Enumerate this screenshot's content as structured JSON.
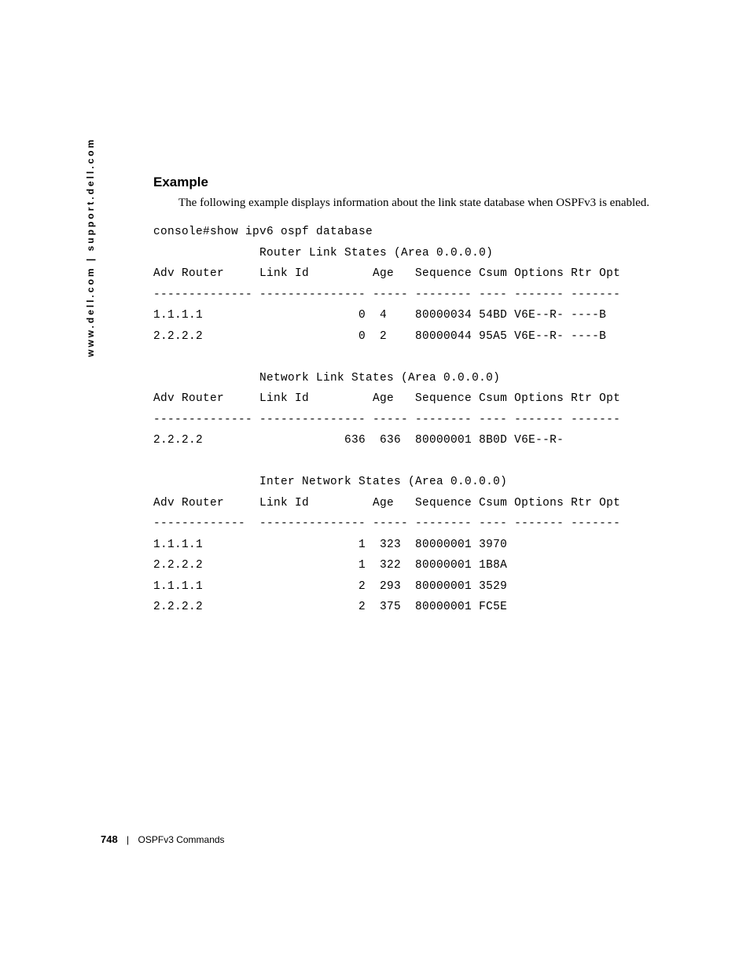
{
  "side_url": "www.dell.com | support.dell.com",
  "heading": "Example",
  "intro": "The following example displays information about the link state database when OSPFv3 is enabled.",
  "console": "console#show ipv6 ospf database\n               Router Link States (Area 0.0.0.0)\nAdv Router     Link Id         Age   Sequence Csum Options Rtr Opt\n-------------- --------------- ----- -------- ---- ------- -------\n1.1.1.1                      0  4    80000034 54BD V6E--R- ----B\n2.2.2.2                      0  2    80000044 95A5 V6E--R- ----B\n\n               Network Link States (Area 0.0.0.0)\nAdv Router     Link Id         Age   Sequence Csum Options Rtr Opt\n-------------- --------------- ----- -------- ---- ------- -------\n2.2.2.2                    636  636  80000001 8B0D V6E--R-\n\n               Inter Network States (Area 0.0.0.0)\nAdv Router     Link Id         Age   Sequence Csum Options Rtr Opt\n-------------  --------------- ----- -------- ---- ------- -------\n1.1.1.1                      1  323  80000001 3970\n2.2.2.2                      1  322  80000001 1B8A\n1.1.1.1                      2  293  80000001 3529\n2.2.2.2                      2  375  80000001 FC5E",
  "footer": {
    "page": "748",
    "sep": "|",
    "section": "OSPFv3 Commands"
  }
}
